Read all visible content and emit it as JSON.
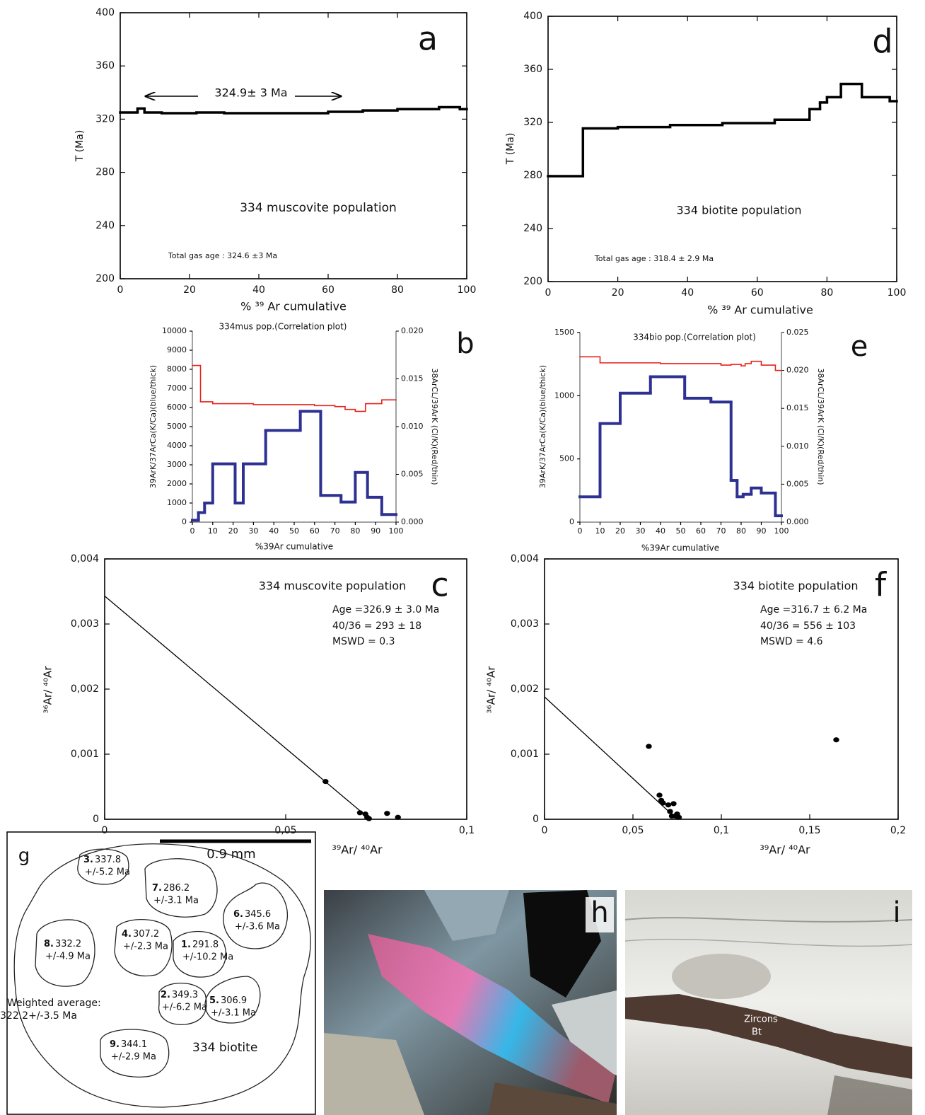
{
  "chart_data": [
    {
      "type": "step",
      "letter": "a",
      "x_label": "% ³⁹ Ar cumulative",
      "y_label": "T (Ma)",
      "annotations": [
        "324.9± 3 Ma",
        "334 muscovite population",
        "Total gas age :   324.6 ±3 Ma"
      ],
      "xlim": [
        0,
        100
      ],
      "xticks": [
        0,
        20,
        40,
        60,
        80,
        100
      ],
      "ylim": [
        200,
        400
      ],
      "yticks": [
        200,
        240,
        280,
        320,
        360,
        400
      ],
      "series": [
        {
          "color": "#000000",
          "bins": [
            0,
            5,
            7,
            12,
            22,
            30,
            60,
            70,
            80,
            92,
            98,
            100
          ],
          "values": [
            325,
            328,
            325,
            324.5,
            325,
            324.5,
            325.5,
            326.5,
            327.5,
            329,
            327.5
          ]
        }
      ]
    },
    {
      "type": "step",
      "letter": "b",
      "title": "334mus pop.(Correlation plot)",
      "x_label": "%39Ar cumulative",
      "y_label": "39ArK/37ArCa(K/Ca)(blue/thick)",
      "y2_label": "38ArCL/39ArK (Cl/K)(Red/thin)",
      "xlim": [
        0,
        100
      ],
      "xticks": [
        0,
        10,
        20,
        30,
        40,
        50,
        60,
        70,
        80,
        90,
        100
      ],
      "ylim": [
        0,
        10000
      ],
      "yticks": [
        0,
        1000,
        2000,
        3000,
        4000,
        5000,
        6000,
        7000,
        8000,
        9000,
        10000
      ],
      "y2lim": [
        0,
        0.02
      ],
      "y2ticks": [
        {
          "value": 0,
          "label": "0.000"
        },
        {
          "value": 0.005,
          "label": "0.005"
        },
        {
          "value": 0.01,
          "label": "0.010"
        },
        {
          "value": 0.015,
          "label": "0.015"
        },
        {
          "value": 0.02,
          "label": "0.020"
        }
      ],
      "series": [
        {
          "color": "#2e3192",
          "bins": [
            0,
            3,
            6,
            10,
            21,
            25,
            36,
            53,
            63,
            73,
            80,
            86,
            93,
            100
          ],
          "values": [
            100,
            500,
            1000,
            3050,
            1000,
            3050,
            4800,
            5800,
            1400,
            1050,
            2600,
            1300,
            400
          ]
        },
        {
          "color": "#e8211c",
          "axis": "y2",
          "bins": [
            0,
            4,
            10,
            30,
            60,
            70,
            75,
            80,
            85,
            93,
            100
          ],
          "values": [
            0.0164,
            0.0126,
            0.0124,
            0.0123,
            0.0122,
            0.0121,
            0.0118,
            0.0116,
            0.0124,
            0.0128
          ]
        }
      ]
    },
    {
      "type": "scatter",
      "letter": "c",
      "x_label": "³⁹Ar/ ⁴⁰Ar",
      "y_label": "³⁶Ar/ ⁴⁰Ar",
      "annotations": [
        "334 muscovite population",
        "Age =326.9 ± 3.0 Ma",
        "40/36 = 293 ± 18",
        "MSWD = 0.3"
      ],
      "xlim": [
        0,
        0.1
      ],
      "xticks": [
        0,
        {
          "value": 0.05,
          "label": "0,05"
        },
        {
          "value": 0.1,
          "label": "0,1"
        }
      ],
      "ylim": [
        0,
        0.004
      ],
      "yticks": [
        0,
        {
          "value": 0.001,
          "label": "0,001"
        },
        {
          "value": 0.002,
          "label": "0,002"
        },
        {
          "value": 0.003,
          "label": "0,003"
        },
        {
          "value": 0.004,
          "label": "0,004"
        }
      ],
      "series": [
        {
          "color": "#000000",
          "x": [
            0.061,
            0.0705,
            0.072,
            0.0725,
            0.073,
            0.078,
            0.081
          ],
          "values": [
            0.00058,
            0.0001,
            8e-05,
            3e-05,
            1e-05,
            9e-05,
            3e-05
          ]
        }
      ],
      "fit": {
        "x": [
          0,
          0.0733
        ],
        "values": [
          0.00343,
          0
        ]
      }
    },
    {
      "type": "step",
      "letter": "d",
      "x_label": "% ³⁹ Ar cumulative",
      "y_label": "T (Ma)",
      "annotations": [
        "334 biotite population",
        "Total gas age : 318.4 ± 2.9 Ma"
      ],
      "xlim": [
        0,
        100
      ],
      "xticks": [
        0,
        20,
        40,
        60,
        80,
        100
      ],
      "ylim": [
        200,
        400
      ],
      "yticks": [
        200,
        240,
        280,
        320,
        360,
        400
      ],
      "series": [
        {
          "color": "#000000",
          "bins": [
            0,
            10,
            20,
            35,
            50,
            65,
            75,
            78,
            80,
            84,
            90,
            98,
            100
          ],
          "values": [
            279.5,
            315.5,
            316.5,
            318,
            319.5,
            322,
            330,
            335,
            339,
            349,
            339,
            336
          ]
        }
      ]
    },
    {
      "type": "step",
      "letter": "e",
      "title": "334bio pop.(Correlation plot)",
      "x_label": "%39Ar cumulative",
      "y_label": "39ArK/37ArCa(K/Ca)(blue/thick)",
      "y2_label": "38ArCL/39ArK (Cl/K)(Red/thin)",
      "xlim": [
        0,
        100
      ],
      "xticks": [
        0,
        10,
        20,
        30,
        40,
        50,
        60,
        70,
        80,
        90,
        100
      ],
      "ylim": [
        0,
        1500
      ],
      "yticks": [
        0,
        500,
        1000,
        1500
      ],
      "y2lim": [
        0,
        0.025
      ],
      "y2ticks": [
        {
          "value": 0,
          "label": "0.000"
        },
        {
          "value": 0.005,
          "label": "0.005"
        },
        {
          "value": 0.01,
          "label": "0.010"
        },
        {
          "value": 0.015,
          "label": "0.015"
        },
        {
          "value": 0.02,
          "label": "0.020"
        },
        {
          "value": 0.025,
          "label": "0.025"
        }
      ],
      "series": [
        {
          "color": "#2e3192",
          "bins": [
            0,
            10,
            20,
            35,
            52,
            65,
            75,
            78,
            81,
            85,
            90,
            97,
            100
          ],
          "values": [
            200,
            780,
            1020,
            1150,
            980,
            950,
            330,
            200,
            220,
            270,
            230,
            50
          ]
        },
        {
          "color": "#e8211c",
          "axis": "y2",
          "bins": [
            0,
            10,
            40,
            70,
            75,
            80,
            82,
            85,
            90,
            97,
            100
          ],
          "values": [
            0.0218,
            0.021,
            0.0209,
            0.0207,
            0.0208,
            0.0206,
            0.0209,
            0.0212,
            0.0207,
            0.02
          ]
        }
      ]
    },
    {
      "type": "scatter",
      "letter": "f",
      "x_label": "³⁹Ar/ ⁴⁰Ar",
      "y_label": "³⁶Ar/ ⁴⁰Ar",
      "annotations": [
        "334 biotite population",
        "Age =316.7 ± 6.2 Ma",
        "40/36 = 556 ± 103",
        "MSWD = 4.6"
      ],
      "xlim": [
        0,
        0.2
      ],
      "xticks": [
        0,
        {
          "value": 0.05,
          "label": "0,05"
        },
        {
          "value": 0.1,
          "label": "0,1"
        },
        {
          "value": 0.15,
          "label": "0,15"
        },
        {
          "value": 0.2,
          "label": "0,2"
        }
      ],
      "ylim": [
        0,
        0.004
      ],
      "yticks": [
        0,
        {
          "value": 0.001,
          "label": "0,001"
        },
        {
          "value": 0.002,
          "label": "0,002"
        },
        {
          "value": 0.003,
          "label": "0,003"
        },
        {
          "value": 0.004,
          "label": "0,004"
        }
      ],
      "series": [
        {
          "color": "#000000",
          "x": [
            0.059,
            0.065,
            0.066,
            0.067,
            0.07,
            0.071,
            0.073,
            0.072,
            0.074,
            0.075,
            0.076,
            0.165
          ],
          "values": [
            0.00112,
            0.00037,
            0.00029,
            0.00025,
            0.00022,
            0.00012,
            0.00024,
            5e-05,
            5e-05,
            8e-05,
            3e-05,
            0.00122
          ]
        }
      ],
      "fit": {
        "x": [
          0,
          0.075
        ],
        "values": [
          0.00188,
          0
        ]
      }
    }
  ],
  "panel_g": {
    "letter": "g",
    "scale_bar": "0.9 mm",
    "spots": [
      {
        "number": "3.",
        "age": "337.8",
        "error": "+/-5.2 Ma"
      },
      {
        "number": "7.",
        "age": "286.2",
        "error": "+/-3.1 Ma"
      },
      {
        "number": "6.",
        "age": "345.6",
        "error": "+/-3.6 Ma"
      },
      {
        "number": "8.",
        "age": "332.2",
        "error": "+/-4.9 Ma"
      },
      {
        "number": "4.",
        "age": "307.2",
        "error": "+/-2.3 Ma"
      },
      {
        "number": "1.",
        "age": "291.8",
        "error": "+/-10.2 Ma"
      },
      {
        "number": "2.",
        "age": "349.3",
        "error": "+/-6.2 Ma"
      },
      {
        "number": "5.",
        "age": "306.9",
        "error": "+/-3.1 Ma"
      },
      {
        "number": "9.",
        "age": "344.1",
        "error": "+/-2.9 Ma"
      }
    ],
    "weighted_average": [
      "Weighted average:",
      "322.2+/-3.5 Ma"
    ],
    "sample": "334 biotite"
  },
  "panel_h": {
    "letter": "h"
  },
  "panel_i": {
    "letter": "i",
    "labels": [
      "Zircons",
      "Bt"
    ]
  }
}
